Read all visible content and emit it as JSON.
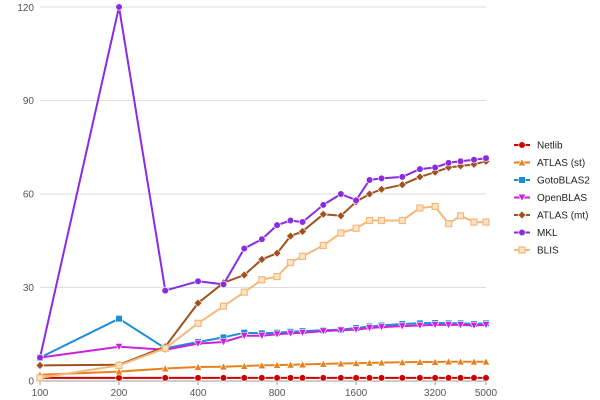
{
  "chart_data": {
    "type": "line",
    "title": "",
    "xlabel": "",
    "ylabel": "",
    "x_scale": "log",
    "x_tick_labels": [
      "100",
      "200",
      "400",
      "800",
      "1600",
      "3200",
      "5000"
    ],
    "x_ticks": [
      100,
      200,
      400,
      800,
      1600,
      3200,
      5000
    ],
    "y_ticks": [
      0,
      30,
      60,
      90,
      120
    ],
    "ylim": [
      0,
      120
    ],
    "xlim": [
      100,
      5000
    ],
    "grid": "horizontal",
    "legend_position": "right",
    "x": [
      100,
      200,
      300,
      400,
      500,
      600,
      700,
      800,
      900,
      1000,
      1200,
      1400,
      1600,
      1800,
      2000,
      2400,
      2800,
      3200,
      3600,
      4000,
      4500,
      5000
    ],
    "series": [
      {
        "name": "Netlib",
        "color": "#cc0000",
        "marker": "circle",
        "x": [
          100,
          200,
          300,
          400,
          500,
          600,
          700,
          800,
          900,
          1000,
          1200,
          1400,
          1600,
          1800,
          2000,
          2400,
          2800,
          3200,
          3600,
          4000,
          4500,
          5000
        ],
        "values": [
          1,
          1,
          1,
          1,
          1,
          1,
          1,
          1,
          1,
          1,
          1,
          1,
          1,
          1,
          1,
          1,
          1,
          1,
          1,
          1,
          1,
          1
        ]
      },
      {
        "name": "ATLAS (st)",
        "color": "#e6821e",
        "marker": "triangle",
        "x": [
          100,
          200,
          300,
          400,
          500,
          600,
          700,
          800,
          900,
          1000,
          1200,
          1400,
          1600,
          1800,
          2000,
          2400,
          2800,
          3200,
          3600,
          4000,
          4500,
          5000
        ],
        "values": [
          2,
          3,
          4,
          4.5,
          4.6,
          4.8,
          5,
          5.1,
          5.2,
          5.3,
          5.5,
          5.6,
          5.7,
          5.8,
          5.9,
          6,
          6.1,
          6.1,
          6.2,
          6.2,
          6.2,
          6.2
        ]
      },
      {
        "name": "GotoBLAS2",
        "color": "#1f8dd6",
        "marker": "square",
        "x": [
          100,
          200,
          300,
          400,
          500,
          600,
          700,
          800,
          900,
          1000,
          1200,
          1400,
          1600,
          1800,
          2000,
          2400,
          2800,
          3200,
          3600,
          4000,
          4500,
          5000
        ],
        "values": [
          7.5,
          20,
          10.5,
          12.5,
          14,
          15.5,
          15.3,
          15.5,
          15.8,
          16,
          16.3,
          16.5,
          17,
          17.5,
          17.8,
          18.3,
          18.5,
          18.6,
          18.5,
          18.5,
          18.3,
          18.5
        ]
      },
      {
        "name": "OpenBLAS",
        "color": "#cc22dd",
        "marker": "triangle-down",
        "x": [
          100,
          200,
          300,
          400,
          500,
          600,
          700,
          800,
          900,
          1000,
          1200,
          1400,
          1600,
          1800,
          2000,
          2400,
          2800,
          3200,
          3600,
          4000,
          4500,
          5000
        ],
        "values": [
          7.5,
          11,
          10,
          12,
          12.5,
          14.5,
          14.5,
          15,
          15.3,
          15.5,
          16,
          16.3,
          16.5,
          17,
          17.3,
          17.6,
          17.8,
          18,
          18,
          18,
          17.8,
          18
        ]
      },
      {
        "name": "ATLAS (mt)",
        "color": "#a0521e",
        "marker": "diamond",
        "x": [
          100,
          200,
          300,
          400,
          500,
          600,
          700,
          800,
          900,
          1000,
          1200,
          1400,
          1600,
          1800,
          2000,
          2400,
          2800,
          3200,
          3600,
          4000,
          4500,
          5000
        ],
        "values": [
          5,
          5.2,
          11,
          25,
          31.5,
          34,
          39,
          41,
          46.5,
          48,
          53.5,
          53,
          57.5,
          60,
          61.5,
          63,
          65.5,
          67,
          68.5,
          69,
          69.5,
          70.5
        ]
      },
      {
        "name": "MKL",
        "color": "#8a2be2",
        "marker": "circle",
        "x": [
          100,
          200,
          300,
          400,
          500,
          600,
          700,
          800,
          900,
          1000,
          1200,
          1400,
          1600,
          1800,
          2000,
          2400,
          2800,
          3200,
          3600,
          4000,
          4500,
          5000
        ],
        "values": [
          7.5,
          120,
          29,
          32,
          31,
          42.5,
          45.5,
          50,
          51.5,
          51,
          56.5,
          60,
          58,
          64.5,
          65,
          65.5,
          68,
          68.5,
          70,
          70.5,
          71,
          71.5
        ]
      },
      {
        "name": "BLIS",
        "color": "#f5b87a",
        "marker": "square-open",
        "x": [
          100,
          200,
          300,
          400,
          500,
          600,
          700,
          800,
          900,
          1000,
          1200,
          1400,
          1600,
          1800,
          2000,
          2400,
          2800,
          3200,
          3600,
          4000,
          4500,
          5000
        ],
        "values": [
          1,
          5,
          10.5,
          18.5,
          24,
          28.5,
          32.5,
          33.5,
          38,
          40,
          43.5,
          47.5,
          49,
          51.5,
          51.5,
          51.5,
          55.5,
          56,
          50.5,
          53,
          51,
          51
        ]
      }
    ]
  }
}
